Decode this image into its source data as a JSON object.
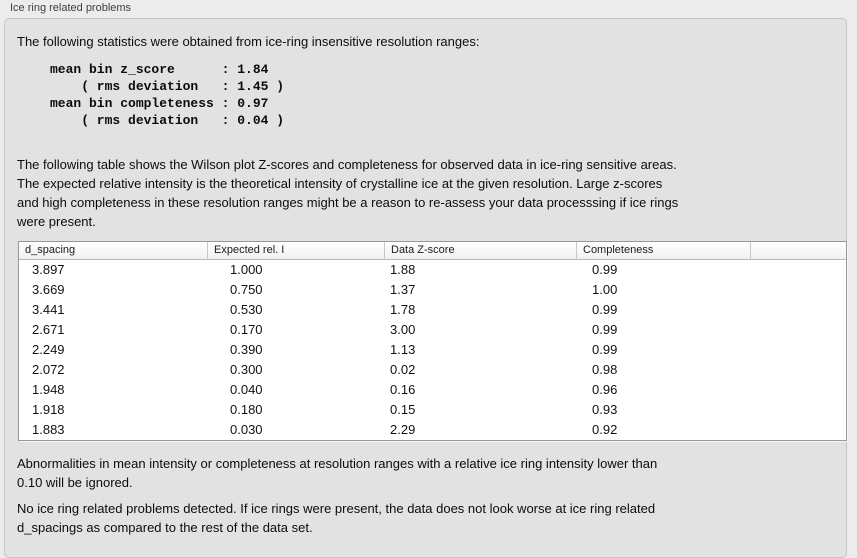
{
  "panel": {
    "title": "Ice ring related problems",
    "intro": "The following statistics were obtained from ice-ring insensitive resolution ranges:",
    "stats_block": "mean bin z_score      : 1.84\n    ( rms deviation   : 1.45 )\nmean bin completeness : 0.97\n    ( rms deviation   : 0.04 )",
    "stats": {
      "mean_bin_z_score": "1.84",
      "z_score_rms_deviation": "1.45",
      "mean_bin_completeness": "0.97",
      "completeness_rms_deviation": "0.04"
    },
    "table_description": "The following table shows the Wilson plot Z-scores and completeness for observed data in ice-ring sensitive areas.\nThe expected relative intensity is the theoretical intensity of crystalline ice at the given resolution. Large z-scores\nand high completeness in these resolution ranges might be a reason to re-assess your data processsing if ice rings\nwere present.",
    "note_ignore": "Abnormalities in mean intensity or completeness at resolution ranges with a relative ice ring intensity lower than\n0.10 will be ignored.",
    "conclusion": "No ice ring related problems detected. If ice rings were present, the data does not look worse at ice ring related\nd_spacings as compared to the rest of the data set."
  },
  "table": {
    "columns": [
      "d_spacing",
      "Expected rel. I",
      "Data Z-score",
      "Completeness",
      ""
    ],
    "rows": [
      [
        "3.897",
        "1.000",
        "1.88",
        "0.99"
      ],
      [
        "3.669",
        "0.750",
        "1.37",
        "1.00"
      ],
      [
        "3.441",
        "0.530",
        "1.78",
        "0.99"
      ],
      [
        "2.671",
        "0.170",
        "3.00",
        "0.99"
      ],
      [
        "2.249",
        "0.390",
        "1.13",
        "0.99"
      ],
      [
        "2.072",
        "0.300",
        "0.02",
        "0.98"
      ],
      [
        "1.948",
        "0.040",
        "0.16",
        "0.96"
      ],
      [
        "1.918",
        "0.180",
        "0.15",
        "0.93"
      ],
      [
        "1.883",
        "0.030",
        "2.29",
        "0.92"
      ]
    ]
  },
  "colors": {
    "window_background": "#ececec",
    "panel_background": "#e2e2e2",
    "panel_border": "#c6c6c6",
    "table_background": "#ffffff",
    "table_border": "#979797",
    "text": "#0c0c0c"
  }
}
